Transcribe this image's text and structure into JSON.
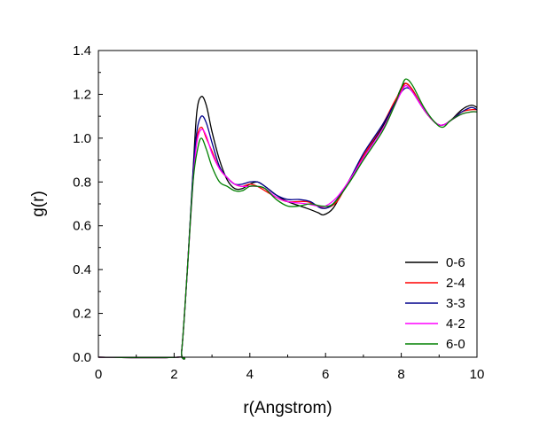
{
  "chart_data": {
    "type": "line",
    "title": "",
    "xlabel": "r(Angstrom)",
    "ylabel": "g(r)",
    "xlim": [
      0,
      10
    ],
    "ylim": [
      0,
      1.4
    ],
    "xticks": [
      0,
      2,
      4,
      6,
      8,
      10
    ],
    "xtick_labels": [
      "0",
      "2",
      "4",
      "6",
      "8",
      "10"
    ],
    "yticks": [
      0,
      0.2,
      0.4,
      0.6,
      0.8,
      1.0,
      1.2,
      1.4
    ],
    "ytick_labels": [
      "0.0",
      "0.2",
      "0.4",
      "0.6",
      "0.8",
      "1.0",
      "1.2",
      "1.4"
    ],
    "grid": false,
    "legend_position": "bottom-right",
    "series": [
      {
        "name": "0-6",
        "color": "#000000",
        "points": [
          [
            0,
            0
          ],
          [
            2.1,
            0
          ],
          [
            2.2,
            0.03
          ],
          [
            2.35,
            0.4
          ],
          [
            2.5,
            0.85
          ],
          [
            2.6,
            1.12
          ],
          [
            2.72,
            1.19
          ],
          [
            2.85,
            1.15
          ],
          [
            3.0,
            1.03
          ],
          [
            3.2,
            0.9
          ],
          [
            3.4,
            0.81
          ],
          [
            3.6,
            0.77
          ],
          [
            3.8,
            0.77
          ],
          [
            4.0,
            0.79
          ],
          [
            4.2,
            0.8
          ],
          [
            4.4,
            0.78
          ],
          [
            4.7,
            0.74
          ],
          [
            5.0,
            0.71
          ],
          [
            5.5,
            0.68
          ],
          [
            5.8,
            0.66
          ],
          [
            5.95,
            0.65
          ],
          [
            6.2,
            0.68
          ],
          [
            6.5,
            0.77
          ],
          [
            7.0,
            0.91
          ],
          [
            7.5,
            1.05
          ],
          [
            7.8,
            1.15
          ],
          [
            8.0,
            1.23
          ],
          [
            8.12,
            1.25
          ],
          [
            8.3,
            1.22
          ],
          [
            8.6,
            1.13
          ],
          [
            8.9,
            1.07
          ],
          [
            9.1,
            1.06
          ],
          [
            9.3,
            1.08
          ],
          [
            9.6,
            1.13
          ],
          [
            9.85,
            1.15
          ],
          [
            10.0,
            1.14
          ]
        ]
      },
      {
        "name": "2-4",
        "color": "#ff0000",
        "points": [
          [
            0,
            0
          ],
          [
            2.1,
            0
          ],
          [
            2.2,
            0.03
          ],
          [
            2.35,
            0.4
          ],
          [
            2.5,
            0.82
          ],
          [
            2.6,
            1.0
          ],
          [
            2.72,
            1.05
          ],
          [
            2.85,
            1.0
          ],
          [
            3.0,
            0.94
          ],
          [
            3.2,
            0.86
          ],
          [
            3.4,
            0.82
          ],
          [
            3.6,
            0.79
          ],
          [
            3.8,
            0.78
          ],
          [
            4.0,
            0.79
          ],
          [
            4.2,
            0.78
          ],
          [
            4.4,
            0.76
          ],
          [
            4.7,
            0.73
          ],
          [
            5.0,
            0.71
          ],
          [
            5.5,
            0.71
          ],
          [
            5.8,
            0.69
          ],
          [
            6.0,
            0.68
          ],
          [
            6.3,
            0.71
          ],
          [
            6.6,
            0.8
          ],
          [
            7.0,
            0.92
          ],
          [
            7.5,
            1.06
          ],
          [
            7.8,
            1.16
          ],
          [
            8.0,
            1.22
          ],
          [
            8.12,
            1.25
          ],
          [
            8.3,
            1.22
          ],
          [
            8.6,
            1.13
          ],
          [
            8.9,
            1.07
          ],
          [
            9.1,
            1.06
          ],
          [
            9.3,
            1.08
          ],
          [
            9.6,
            1.12
          ],
          [
            9.85,
            1.13
          ],
          [
            10.0,
            1.13
          ]
        ]
      },
      {
        "name": "3-3",
        "color": "#00008b",
        "points": [
          [
            0,
            0
          ],
          [
            2.1,
            0
          ],
          [
            2.2,
            0.03
          ],
          [
            2.35,
            0.4
          ],
          [
            2.5,
            0.84
          ],
          [
            2.6,
            1.03
          ],
          [
            2.72,
            1.1
          ],
          [
            2.85,
            1.07
          ],
          [
            3.0,
            0.98
          ],
          [
            3.2,
            0.87
          ],
          [
            3.4,
            0.82
          ],
          [
            3.6,
            0.79
          ],
          [
            3.8,
            0.79
          ],
          [
            4.0,
            0.8
          ],
          [
            4.2,
            0.8
          ],
          [
            4.4,
            0.78
          ],
          [
            4.7,
            0.74
          ],
          [
            5.0,
            0.72
          ],
          [
            5.3,
            0.72
          ],
          [
            5.6,
            0.71
          ],
          [
            5.9,
            0.68
          ],
          [
            6.2,
            0.7
          ],
          [
            6.6,
            0.8
          ],
          [
            7.0,
            0.93
          ],
          [
            7.5,
            1.06
          ],
          [
            7.8,
            1.15
          ],
          [
            8.0,
            1.21
          ],
          [
            8.15,
            1.23
          ],
          [
            8.3,
            1.21
          ],
          [
            8.6,
            1.13
          ],
          [
            8.9,
            1.07
          ],
          [
            9.1,
            1.06
          ],
          [
            9.3,
            1.08
          ],
          [
            9.6,
            1.12
          ],
          [
            9.85,
            1.14
          ],
          [
            10.0,
            1.13
          ]
        ]
      },
      {
        "name": "4-2",
        "color": "#ff00ff",
        "points": [
          [
            0,
            0
          ],
          [
            2.1,
            0
          ],
          [
            2.2,
            0.03
          ],
          [
            2.35,
            0.4
          ],
          [
            2.5,
            0.8
          ],
          [
            2.6,
            0.98
          ],
          [
            2.72,
            1.04
          ],
          [
            2.85,
            1.01
          ],
          [
            3.0,
            0.93
          ],
          [
            3.2,
            0.86
          ],
          [
            3.4,
            0.82
          ],
          [
            3.6,
            0.79
          ],
          [
            3.8,
            0.78
          ],
          [
            4.0,
            0.78
          ],
          [
            4.2,
            0.78
          ],
          [
            4.4,
            0.77
          ],
          [
            4.7,
            0.73
          ],
          [
            5.0,
            0.71
          ],
          [
            5.5,
            0.7
          ],
          [
            5.8,
            0.69
          ],
          [
            6.0,
            0.69
          ],
          [
            6.3,
            0.73
          ],
          [
            6.6,
            0.8
          ],
          [
            7.0,
            0.91
          ],
          [
            7.5,
            1.04
          ],
          [
            7.8,
            1.14
          ],
          [
            8.0,
            1.21
          ],
          [
            8.12,
            1.24
          ],
          [
            8.3,
            1.21
          ],
          [
            8.6,
            1.13
          ],
          [
            8.9,
            1.07
          ],
          [
            9.1,
            1.06
          ],
          [
            9.3,
            1.08
          ],
          [
            9.6,
            1.11
          ],
          [
            9.85,
            1.12
          ],
          [
            10.0,
            1.12
          ]
        ]
      },
      {
        "name": "6-0",
        "color": "#008000",
        "points": [
          [
            0,
            0
          ],
          [
            2.1,
            0
          ],
          [
            2.2,
            0.03
          ],
          [
            2.35,
            0.4
          ],
          [
            2.5,
            0.8
          ],
          [
            2.62,
            0.95
          ],
          [
            2.72,
            1.0
          ],
          [
            2.85,
            0.95
          ],
          [
            3.0,
            0.87
          ],
          [
            3.2,
            0.8
          ],
          [
            3.4,
            0.78
          ],
          [
            3.6,
            0.76
          ],
          [
            3.8,
            0.76
          ],
          [
            4.0,
            0.78
          ],
          [
            4.2,
            0.78
          ],
          [
            4.4,
            0.77
          ],
          [
            4.7,
            0.72
          ],
          [
            5.0,
            0.69
          ],
          [
            5.3,
            0.69
          ],
          [
            5.6,
            0.7
          ],
          [
            5.9,
            0.69
          ],
          [
            6.2,
            0.7
          ],
          [
            6.6,
            0.79
          ],
          [
            7.0,
            0.9
          ],
          [
            7.5,
            1.03
          ],
          [
            7.8,
            1.14
          ],
          [
            8.0,
            1.23
          ],
          [
            8.12,
            1.27
          ],
          [
            8.3,
            1.24
          ],
          [
            8.6,
            1.14
          ],
          [
            8.9,
            1.07
          ],
          [
            9.1,
            1.05
          ],
          [
            9.3,
            1.08
          ],
          [
            9.6,
            1.11
          ],
          [
            9.85,
            1.12
          ],
          [
            10.0,
            1.12
          ]
        ]
      }
    ]
  }
}
